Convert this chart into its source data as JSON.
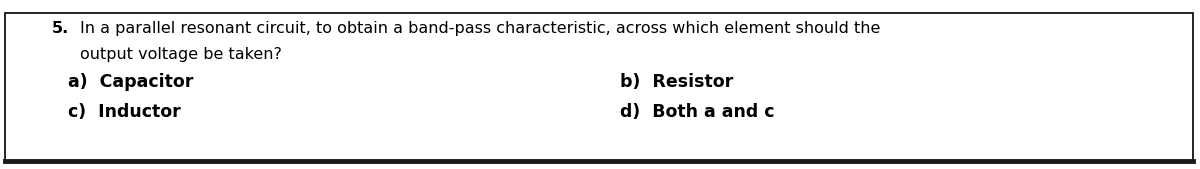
{
  "question_number": "5.",
  "question_line1": "In a parallel resonant circuit, to obtain a band-pass characteristic, across which element should the",
  "question_line2": "output voltage be taken?",
  "option_a": "a)  Capacitor",
  "option_b": "b)  Resistor",
  "option_c": "c)  Inductor",
  "option_d": "d)  Both a and c",
  "bg_color": "#ffffff",
  "border_color": "#000000",
  "text_color": "#000000",
  "font_size_question": 11.5,
  "font_size_options": 12.5,
  "bottom_border_color": "#1a1a1a"
}
